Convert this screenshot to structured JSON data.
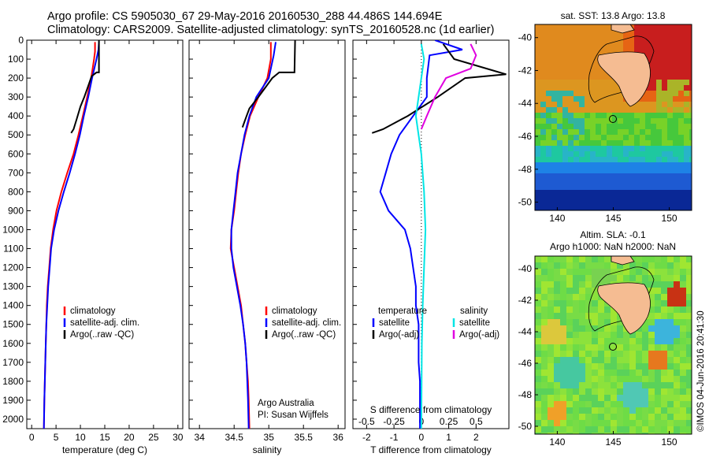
{
  "header": {
    "line1": "Argo profile: CS 5905030_67 29-May-2016 20160530_288 44.486S 144.694E",
    "line2": "Climatology: CARS2009. Satellite-adjusted climatology: synTS_20160528.nc (1d earlier)"
  },
  "colors": {
    "climatology": "#ff0000",
    "satellite": "#0000ff",
    "argo": "#000000",
    "sat_salinity": "#00e5e5",
    "argo_salinity": "#e000e0"
  },
  "chart_data": [
    {
      "type": "line",
      "name": "temperature-profile",
      "xlabel": "temperature (deg C)",
      "ylabel": "",
      "xlim": [
        -1,
        31
      ],
      "ylim": [
        2050,
        0
      ],
      "xticks": [
        "0",
        "5",
        "10",
        "15",
        "20",
        "25",
        "30"
      ],
      "yticks": [
        "0",
        "100",
        "200",
        "300",
        "400",
        "500",
        "600",
        "700",
        "800",
        "900",
        "1000",
        "1100",
        "1200",
        "1300",
        "1400",
        "1500",
        "1600",
        "1700",
        "1800",
        "1900",
        "2000"
      ],
      "legend": [
        "climatology",
        "satellite-adj. clim.",
        "Argo(..raw -QC)"
      ],
      "series": [
        {
          "name": "climatology",
          "color": "#ff0000",
          "points": [
            [
              13,
              10
            ],
            [
              13,
              60
            ],
            [
              12.8,
              100
            ],
            [
              12.2,
              200
            ],
            [
              11.4,
              300
            ],
            [
              10.5,
              400
            ],
            [
              9.6,
              500
            ],
            [
              8.6,
              600
            ],
            [
              7.3,
              700
            ],
            [
              6.1,
              800
            ],
            [
              5.1,
              900
            ],
            [
              4.4,
              1000
            ],
            [
              3.9,
              1100
            ],
            [
              3.6,
              1200
            ],
            [
              3.3,
              1300
            ],
            [
              3.1,
              1400
            ],
            [
              3.0,
              1500
            ],
            [
              2.9,
              1600
            ],
            [
              2.8,
              1700
            ],
            [
              2.7,
              1800
            ],
            [
              2.6,
              1900
            ],
            [
              2.5,
              2050
            ]
          ]
        },
        {
          "name": "satellite-adj. clim.",
          "color": "#0000ff",
          "points": [
            [
              13.8,
              10
            ],
            [
              13.7,
              50
            ],
            [
              13.3,
              100
            ],
            [
              12.4,
              200
            ],
            [
              11.6,
              300
            ],
            [
              10.7,
              400
            ],
            [
              9.9,
              500
            ],
            [
              8.9,
              600
            ],
            [
              7.8,
              700
            ],
            [
              6.6,
              800
            ],
            [
              5.5,
              900
            ],
            [
              4.6,
              1000
            ],
            [
              4.0,
              1100
            ],
            [
              3.7,
              1200
            ],
            [
              3.4,
              1300
            ],
            [
              3.2,
              1400
            ],
            [
              3.0,
              1500
            ],
            [
              2.9,
              1600
            ],
            [
              2.8,
              1700
            ],
            [
              2.7,
              1800
            ],
            [
              2.6,
              1900
            ],
            [
              2.5,
              2050
            ]
          ]
        },
        {
          "name": "Argo(..raw -QC)",
          "color": "#000000",
          "points": [
            [
              13.8,
              0
            ],
            [
              13.8,
              170
            ],
            [
              13.3,
              170
            ],
            [
              12.3,
              190
            ],
            [
              11.5,
              250
            ],
            [
              10.8,
              300
            ],
            [
              10.0,
              350
            ],
            [
              9.2,
              420
            ],
            [
              8.6,
              470
            ],
            [
              8.1,
              490
            ]
          ]
        }
      ]
    },
    {
      "type": "line",
      "name": "salinity-profile",
      "xlabel": "salinity",
      "ylabel": "",
      "xlim": [
        33.85,
        36.1
      ],
      "ylim": [
        2050,
        0
      ],
      "xticks": [
        "34",
        "34.5",
        "35",
        "35.5",
        "36"
      ],
      "legend": [
        "climatology",
        "satellite-adj. clim.",
        "Argo(..raw -QC)"
      ],
      "annotation": [
        "Argo Australia",
        "PI: Susan Wijffels"
      ],
      "series": [
        {
          "name": "climatology",
          "color": "#ff0000",
          "points": [
            [
              35.03,
              10
            ],
            [
              35.03,
              100
            ],
            [
              34.98,
              200
            ],
            [
              34.85,
              300
            ],
            [
              34.73,
              400
            ],
            [
              34.66,
              500
            ],
            [
              34.6,
              600
            ],
            [
              34.56,
              700
            ],
            [
              34.53,
              800
            ],
            [
              34.5,
              900
            ],
            [
              34.46,
              1000
            ],
            [
              34.45,
              1100
            ],
            [
              34.5,
              1200
            ],
            [
              34.55,
              1300
            ],
            [
              34.6,
              1400
            ],
            [
              34.63,
              1500
            ],
            [
              34.66,
              1600
            ],
            [
              34.68,
              1700
            ],
            [
              34.7,
              1800
            ],
            [
              34.71,
              1900
            ],
            [
              34.72,
              2050
            ]
          ]
        },
        {
          "name": "satellite-adj. clim.",
          "color": "#0000ff",
          "points": [
            [
              35.1,
              10
            ],
            [
              35.07,
              80
            ],
            [
              35.0,
              200
            ],
            [
              34.82,
              300
            ],
            [
              34.72,
              400
            ],
            [
              34.65,
              500
            ],
            [
              34.6,
              600
            ],
            [
              34.55,
              700
            ],
            [
              34.52,
              800
            ],
            [
              34.49,
              900
            ],
            [
              34.46,
              1000
            ],
            [
              34.46,
              1100
            ],
            [
              34.49,
              1200
            ],
            [
              34.54,
              1300
            ],
            [
              34.59,
              1400
            ],
            [
              34.63,
              1500
            ],
            [
              34.66,
              1600
            ],
            [
              34.68,
              1700
            ],
            [
              34.69,
              1800
            ],
            [
              34.7,
              1900
            ],
            [
              34.71,
              2050
            ]
          ]
        },
        {
          "name": "Argo(..raw -QC)",
          "color": "#000000",
          "points": [
            [
              35.38,
              0
            ],
            [
              35.37,
              170
            ],
            [
              35.15,
              170
            ],
            [
              35.05,
              200
            ],
            [
              34.85,
              300
            ],
            [
              34.72,
              360
            ],
            [
              34.68,
              400
            ],
            [
              34.65,
              430
            ],
            [
              34.62,
              460
            ]
          ]
        }
      ]
    },
    {
      "type": "line",
      "name": "difference-profile",
      "xlabel": "T difference from climatology",
      "top_xlabel": "S difference from climatology",
      "xlim": [
        -2.5,
        3.2
      ],
      "ylim": [
        2050,
        0
      ],
      "xticks": [
        "-2",
        "-1",
        "0",
        "1",
        "2"
      ],
      "top_xticks": [
        "-0.5",
        "-0.25",
        "0",
        "0.25",
        "0.5"
      ],
      "legend_titles": [
        "temperature",
        "salinity"
      ],
      "legend": [
        "satellite",
        "Argo(-adj)",
        "satellite",
        "Argo(-adj)"
      ],
      "series": [
        {
          "name": "temperature satellite",
          "color": "#0000ff",
          "points": [
            [
              0.5,
              0
            ],
            [
              1.5,
              50
            ],
            [
              0.3,
              80
            ],
            [
              0.2,
              200
            ],
            [
              0.2,
              300
            ],
            [
              -0.3,
              400
            ],
            [
              -0.8,
              500
            ],
            [
              -1.1,
              600
            ],
            [
              -1.3,
              700
            ],
            [
              -1.5,
              800
            ],
            [
              -1.2,
              900
            ],
            [
              -0.6,
              1000
            ],
            [
              -0.4,
              1100
            ],
            [
              -0.3,
              1200
            ],
            [
              -0.2,
              1300
            ],
            [
              -0.2,
              1400
            ],
            [
              -0.1,
              1500
            ],
            [
              -0.1,
              1600
            ],
            [
              -0.1,
              1700
            ],
            [
              -0.05,
              1800
            ],
            [
              -0.05,
              1900
            ],
            [
              -0.05,
              2050
            ]
          ]
        },
        {
          "name": "temperature Argo(-adj)",
          "color": "#000000",
          "points": [
            [
              0.8,
              20
            ],
            [
              1.2,
              100
            ],
            [
              3.1,
              180
            ],
            [
              1.6,
              200
            ],
            [
              0.6,
              300
            ],
            [
              -0.5,
              400
            ],
            [
              -1.4,
              470
            ],
            [
              -1.8,
              490
            ]
          ]
        },
        {
          "name": "salinity satellite",
          "color": "#00e5e5",
          "points": [
            [
              0,
              20
            ],
            [
              0.1,
              100
            ],
            [
              0,
              200
            ],
            [
              -0.2,
              400
            ],
            [
              0,
              600
            ],
            [
              0.1,
              800
            ],
            [
              0.15,
              1000
            ],
            [
              0.1,
              1200
            ],
            [
              0.05,
              1400
            ],
            [
              0.02,
              1600
            ],
            [
              0,
              2050
            ]
          ]
        },
        {
          "name": "salinity Argo(-adj)",
          "color": "#e000e0",
          "points": [
            [
              1.8,
              20
            ],
            [
              2.0,
              80
            ],
            [
              1.8,
              150
            ],
            [
              0.9,
              200
            ],
            [
              0.5,
              300
            ],
            [
              0.2,
              400
            ],
            [
              0,
              470
            ]
          ]
        }
      ]
    },
    {
      "type": "heatmap",
      "name": "sst-map",
      "title": "sat. SST: 13.8  Argo: 13.8",
      "xlim": [
        138,
        152
      ],
      "ylim": [
        -50.5,
        -39.2
      ],
      "xticks": [
        "140",
        "145",
        "150"
      ],
      "yticks": [
        "-40",
        "-42",
        "-44",
        "-46",
        "-48",
        "-50"
      ],
      "argo_position": [
        144.694,
        -44.486
      ]
    },
    {
      "type": "heatmap",
      "name": "sla-map",
      "title_line1": "Altim. SLA: -0.1",
      "title_line2": "Argo h1000: NaN h2000: NaN",
      "xlim": [
        138,
        152
      ],
      "ylim": [
        -50.5,
        -39.2
      ],
      "xticks": [
        "140",
        "145",
        "150"
      ],
      "yticks": [
        "-40",
        "-42",
        "-44",
        "-46",
        "-48",
        "-50"
      ],
      "argo_position": [
        144.694,
        -44.486
      ]
    }
  ],
  "watermark": "©IMOS 04-Jun-2016 20:41:30"
}
